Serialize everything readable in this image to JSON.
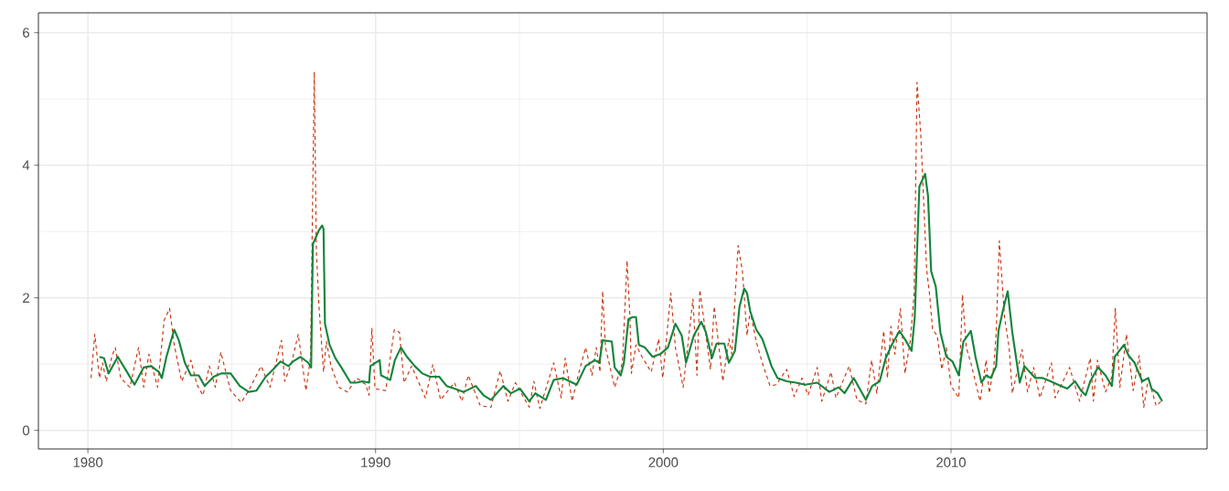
{
  "chart_data": {
    "type": "line",
    "xlim": [
      1978.28,
      2018.9
    ],
    "ylim": [
      -0.28,
      6.3
    ],
    "xticks": [
      1980,
      1990,
      2000,
      2010
    ],
    "yticks": [
      0,
      2,
      4,
      6
    ],
    "grid": true,
    "series": [
      {
        "color": "#c8320c",
        "line_style": "dashed",
        "x": [
          1980.11,
          1980.24,
          1980.4,
          1980.51,
          1980.64,
          1980.83,
          1980.95,
          1981.14,
          1981.46,
          1981.76,
          1981.94,
          1982.12,
          1982.42,
          1982.65,
          1982.84,
          1983.0,
          1983.26,
          1983.58,
          1983.79,
          1984.0,
          1984.22,
          1984.43,
          1984.62,
          1984.96,
          1985.33,
          1985.59,
          1986.02,
          1986.33,
          1986.73,
          1986.84,
          1987.08,
          1987.31,
          1987.58,
          1987.74,
          1987.87,
          1987.94,
          1988.03,
          1988.19,
          1988.29,
          1988.45,
          1988.72,
          1989.02,
          1989.34,
          1989.66,
          1989.77,
          1989.87,
          1989.98,
          1990.35,
          1990.65,
          1990.83,
          1990.99,
          1991.25,
          1991.73,
          1991.99,
          1992.26,
          1992.74,
          1993.0,
          1993.22,
          1993.64,
          1994.01,
          1994.33,
          1994.6,
          1994.86,
          1995.34,
          1995.5,
          1995.71,
          1996.19,
          1996.45,
          1996.59,
          1996.83,
          1997.04,
          1997.3,
          1997.52,
          1997.67,
          1997.8,
          1997.89,
          1997.99,
          1998.31,
          1998.58,
          1998.74,
          1998.84,
          1998.89,
          1999.05,
          1999.26,
          1999.58,
          1999.84,
          1999.98,
          2000.26,
          2000.42,
          2000.69,
          2001.03,
          2001.17,
          2001.27,
          2001.64,
          2001.77,
          2002.07,
          2002.28,
          2002.38,
          2002.6,
          2002.75,
          2002.91,
          2003.02,
          2003.23,
          2003.44,
          2003.71,
          2003.92,
          2004.29,
          2004.55,
          2004.82,
          2005.03,
          2005.35,
          2005.51,
          2005.83,
          2006.0,
          2006.46,
          2006.73,
          2007.04,
          2007.24,
          2007.42,
          2007.66,
          2007.79,
          2007.91,
          2008.05,
          2008.24,
          2008.4,
          2008.58,
          2008.72,
          2008.82,
          2008.95,
          2009.15,
          2009.26,
          2009.36,
          2009.52,
          2009.68,
          2009.84,
          2010.0,
          2010.27,
          2010.4,
          2010.53,
          2010.69,
          2011.01,
          2011.22,
          2011.33,
          2011.49,
          2011.57,
          2011.68,
          2011.86,
          2012.02,
          2012.13,
          2012.47,
          2012.66,
          2012.87,
          2013.09,
          2013.49,
          2013.62,
          2014.12,
          2014.47,
          2014.84,
          2014.95,
          2015.09,
          2015.37,
          2015.59,
          2015.71,
          2015.87,
          2016.1,
          2016.33,
          2016.54,
          2016.7,
          2016.86,
          2017.13,
          2017.36
        ],
        "values": [
          0.79,
          1.45,
          0.79,
          1.02,
          0.74,
          1.11,
          1.25,
          0.79,
          0.65,
          1.25,
          0.65,
          1.15,
          0.65,
          1.66,
          1.84,
          1.29,
          0.74,
          1.06,
          0.69,
          0.53,
          0.97,
          0.65,
          1.18,
          0.6,
          0.42,
          0.6,
          0.97,
          0.65,
          1.36,
          0.74,
          1.02,
          1.45,
          0.6,
          1.11,
          5.41,
          2.72,
          1.89,
          0.88,
          1.34,
          0.97,
          0.65,
          0.58,
          0.79,
          0.69,
          0.53,
          1.54,
          0.63,
          0.6,
          1.52,
          1.48,
          0.72,
          0.97,
          0.49,
          0.99,
          0.46,
          0.72,
          0.44,
          0.83,
          0.37,
          0.35,
          0.9,
          0.44,
          0.72,
          0.35,
          0.74,
          0.33,
          1.02,
          0.49,
          1.09,
          0.44,
          0.83,
          1.25,
          0.83,
          1.25,
          0.88,
          2.1,
          1.25,
          0.65,
          1.02,
          2.56,
          1.71,
          0.86,
          1.29,
          1.11,
          0.88,
          1.38,
          0.79,
          2.07,
          1.25,
          0.65,
          1.98,
          0.83,
          2.12,
          0.92,
          1.87,
          0.74,
          1.38,
          1.15,
          2.79,
          2.4,
          1.43,
          1.8,
          1.34,
          1.02,
          0.67,
          0.69,
          0.92,
          0.51,
          0.79,
          0.53,
          0.95,
          0.44,
          0.88,
          0.49,
          0.97,
          0.46,
          0.4,
          1.06,
          0.56,
          1.5,
          0.79,
          1.57,
          1.15,
          1.84,
          0.86,
          1.34,
          2.07,
          5.25,
          4.46,
          2.44,
          2.03,
          1.52,
          1.43,
          0.92,
          1.25,
          0.67,
          0.49,
          2.05,
          1.25,
          1.02,
          0.44,
          1.06,
          0.56,
          0.97,
          1.48,
          2.86,
          1.71,
          1.25,
          0.56,
          1.22,
          0.58,
          0.95,
          0.49,
          1.02,
          0.49,
          0.95,
          0.44,
          1.09,
          0.44,
          1.06,
          0.58,
          0.81,
          1.84,
          0.65,
          1.45,
          0.6,
          1.13,
          0.35,
          0.79,
          0.37,
          0.46
        ]
      },
      {
        "color": "#13853c",
        "line_style": "solid",
        "x": [
          1980.4,
          1980.56,
          1980.72,
          1981.04,
          1981.36,
          1981.62,
          1981.94,
          1982.2,
          1982.47,
          1982.57,
          1982.73,
          1983.0,
          1983.16,
          1983.37,
          1983.58,
          1983.85,
          1984.06,
          1984.37,
          1984.64,
          1984.96,
          1985.28,
          1985.59,
          1985.86,
          1986.18,
          1986.44,
          1986.7,
          1986.97,
          1987.13,
          1987.39,
          1987.66,
          1987.76,
          1987.82,
          1988.03,
          1988.14,
          1988.19,
          1988.24,
          1988.4,
          1988.6,
          1988.81,
          1989.13,
          1989.34,
          1989.55,
          1989.77,
          1989.82,
          1990.14,
          1990.19,
          1990.51,
          1990.67,
          1990.88,
          1991.09,
          1991.36,
          1991.62,
          1991.89,
          1992.21,
          1992.47,
          1992.74,
          1993.06,
          1993.48,
          1993.75,
          1994.01,
          1994.44,
          1994.7,
          1995.02,
          1995.34,
          1995.55,
          1995.92,
          1996.19,
          1996.51,
          1996.99,
          1997.3,
          1997.62,
          1997.78,
          1997.89,
          1998.21,
          1998.31,
          1998.52,
          1998.63,
          1998.79,
          1998.94,
          1999.05,
          1999.15,
          1999.36,
          1999.63,
          1999.89,
          2000.16,
          2000.42,
          2000.64,
          2000.79,
          2001.06,
          2001.32,
          2001.48,
          2001.69,
          2001.85,
          2002.12,
          2002.28,
          2002.49,
          2002.65,
          2002.81,
          2002.91,
          2003.02,
          2003.23,
          2003.44,
          2003.6,
          2003.76,
          2003.97,
          2004.29,
          2004.61,
          2004.93,
          2005.35,
          2005.77,
          2006.09,
          2006.3,
          2006.62,
          2007.04,
          2007.26,
          2007.52,
          2007.73,
          2007.94,
          2008.21,
          2008.42,
          2008.63,
          2008.74,
          2008.9,
          2009.1,
          2009.2,
          2009.31,
          2009.47,
          2009.63,
          2009.84,
          2010.05,
          2010.27,
          2010.43,
          2010.69,
          2010.85,
          2011.06,
          2011.22,
          2011.38,
          2011.57,
          2011.65,
          2011.81,
          2011.97,
          2012.13,
          2012.39,
          2012.55,
          2012.93,
          2013.19,
          2013.46,
          2013.72,
          2014.04,
          2014.31,
          2014.52,
          2014.68,
          2014.84,
          2015.11,
          2015.37,
          2015.59,
          2015.69,
          2016.01,
          2016.17,
          2016.38,
          2016.65,
          2016.86,
          2016.97,
          2017.18,
          2017.34
        ],
        "values": [
          1.11,
          1.09,
          0.86,
          1.11,
          0.88,
          0.69,
          0.95,
          0.97,
          0.88,
          0.79,
          1.11,
          1.52,
          1.36,
          1.02,
          0.83,
          0.83,
          0.67,
          0.81,
          0.86,
          0.86,
          0.67,
          0.58,
          0.6,
          0.81,
          0.92,
          1.04,
          0.97,
          1.04,
          1.11,
          1.02,
          0.95,
          2.81,
          3.02,
          3.09,
          3.04,
          1.61,
          1.29,
          1.09,
          0.95,
          0.72,
          0.72,
          0.74,
          0.72,
          0.97,
          1.06,
          0.83,
          0.76,
          1.06,
          1.25,
          1.11,
          0.97,
          0.86,
          0.81,
          0.81,
          0.67,
          0.63,
          0.58,
          0.67,
          0.53,
          0.46,
          0.67,
          0.56,
          0.63,
          0.44,
          0.56,
          0.46,
          0.76,
          0.79,
          0.69,
          0.97,
          1.06,
          1.02,
          1.36,
          1.34,
          0.95,
          0.83,
          1.02,
          1.68,
          1.71,
          1.71,
          1.29,
          1.25,
          1.11,
          1.15,
          1.25,
          1.61,
          1.43,
          1.02,
          1.43,
          1.64,
          1.48,
          1.09,
          1.31,
          1.31,
          1.02,
          1.2,
          1.87,
          2.14,
          2.07,
          1.8,
          1.52,
          1.38,
          1.18,
          0.97,
          0.79,
          0.74,
          0.72,
          0.69,
          0.72,
          0.58,
          0.65,
          0.56,
          0.79,
          0.46,
          0.67,
          0.74,
          1.09,
          1.29,
          1.5,
          1.36,
          1.2,
          1.71,
          3.68,
          3.87,
          3.54,
          2.4,
          2.17,
          1.48,
          1.11,
          1.04,
          0.83,
          1.34,
          1.5,
          1.11,
          0.72,
          0.83,
          0.79,
          0.97,
          1.5,
          1.82,
          2.1,
          1.48,
          0.72,
          0.97,
          0.79,
          0.79,
          0.74,
          0.69,
          0.63,
          0.74,
          0.6,
          0.53,
          0.74,
          0.95,
          0.83,
          0.67,
          1.11,
          1.29,
          1.13,
          1.02,
          0.74,
          0.79,
          0.63,
          0.56,
          0.44
        ]
      }
    ]
  }
}
